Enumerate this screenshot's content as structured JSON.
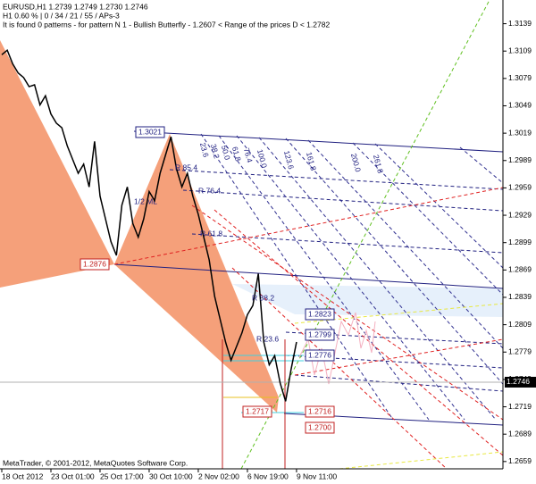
{
  "chart_data": {
    "type": "line",
    "symbol_header": "EURUSD,H1  1.2739 1.2749 1.2730 1.2746",
    "info_line": "H1  0.60 % | 0 / 34 / 21 / 55 / APs-3",
    "pattern_line": "It is found 0 patterns  -  for pattern N 1 - Bullish Butterfly - 1.2607 < Range of the prices D < 1.2782",
    "copyright": "MetaTrader, © 2001-2012, MetaQuotes Software Corp.",
    "categories": [
      "18 Oct 2012",
      null,
      null,
      null,
      null,
      null,
      null,
      null,
      null,
      "23 Oct 01:00",
      null,
      null,
      null,
      null,
      null,
      null,
      null,
      null,
      "25 Oct 17:00",
      null,
      null,
      null,
      null,
      null,
      null,
      null,
      null,
      "30 Oct 10:00",
      null,
      null,
      null,
      null,
      null,
      null,
      null,
      null,
      "2 Nov 02:00",
      null,
      null,
      null,
      null,
      null,
      null,
      null,
      null,
      "6 Nov 19:00",
      null,
      null,
      null,
      null,
      null,
      null,
      null,
      null,
      "9 Nov 11:00"
    ],
    "values": [
      1.3105,
      1.311,
      1.3095,
      1.3085,
      1.308,
      1.307,
      1.3072,
      1.305,
      1.306,
      1.304,
      1.303,
      1.3025,
      1.3005,
      1.299,
      1.2975,
      1.2985,
      1.296,
      1.301,
      1.295,
      1.2925,
      1.29,
      1.2885,
      1.294,
      1.296,
      1.292,
      1.2905,
      1.2925,
      1.2955,
      1.2945,
      1.2975,
      1.2995,
      1.3015,
      1.298,
      1.296,
      1.2975,
      1.295,
      1.293,
      1.2905,
      1.288,
      1.284,
      1.2815,
      1.279,
      1.277,
      1.2785,
      1.28,
      1.282,
      1.283,
      1.2865,
      1.279,
      1.2765,
      1.2775,
      1.2745,
      1.2725,
      1.276,
      1.279
    ],
    "color": "#000000",
    "ylim": [
      1.2651,
      1.3165
    ],
    "yticks": [
      1.3139,
      1.3109,
      1.3079,
      1.3049,
      1.3019,
      1.2989,
      1.2959,
      1.2929,
      1.2899,
      1.2869,
      1.2839,
      1.2809,
      1.2779,
      1.2749,
      1.2719,
      1.2689,
      1.2659
    ],
    "current_price": 1.2746,
    "price_labels": [
      "1.3021",
      "1.2876",
      "1.2823",
      "1.2799",
      "1.2776",
      "1.2717",
      "1.2716",
      "1.2700"
    ],
    "fib_labels": [
      "23.6",
      "38.2",
      "50.0",
      "61.8",
      "76.4",
      "100.0",
      "123.6",
      "161.8",
      "200.0",
      "261.8"
    ],
    "ray_labels": [
      "R 85.4",
      "R 76.4",
      "R 61.8",
      "R 38.2",
      "R 23.6"
    ],
    "median_label": "1/2 ML"
  }
}
